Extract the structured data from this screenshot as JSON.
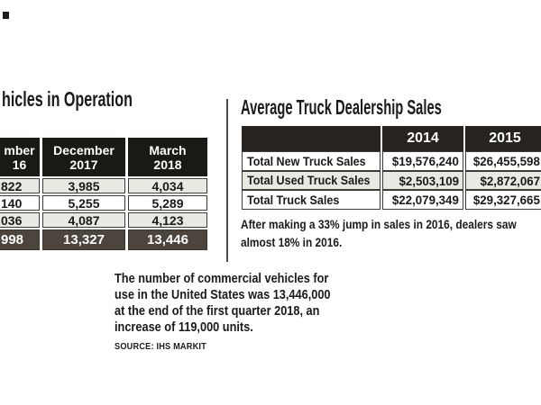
{
  "vio": {
    "title_fragment": "hicles in Operation",
    "header": {
      "col1_line1": "mber",
      "col1_line2": "16",
      "col2_line1": "December",
      "col2_line2": "2017",
      "col3_line1": "March",
      "col3_line2": "2018"
    },
    "rows": [
      {
        "c1": "822",
        "c2": "3,985",
        "c3": "4,034"
      },
      {
        "c1": "140",
        "c2": "5,255",
        "c3": "5,289"
      },
      {
        "c1": "036",
        "c2": "4,087",
        "c3": "4,123"
      },
      {
        "c1": "998",
        "c2": "13,327",
        "c3": "13,446"
      }
    ]
  },
  "sales": {
    "title": "Average Truck Dealership Sales",
    "header": {
      "col1": "",
      "col2": "2014",
      "col3": "2015"
    },
    "rows": [
      {
        "label": "Total New Truck Sales",
        "y2014": "$19,576,240",
        "y2015": "$26,455,598"
      },
      {
        "label": "Total Used Truck Sales",
        "y2014": "$2,503,109",
        "y2015": "$2,872,067"
      },
      {
        "label": "Total Truck Sales",
        "y2014": "$22,079,349",
        "y2015": "$29,327,665"
      }
    ],
    "note_line1": "After making a 33% jump in sales in 2016, dealers saw",
    "note_line2": "almost 18% in 2016."
  },
  "footer": {
    "para_line1": "The number of commercial vehicles for",
    "para_line2": "use in the United States was 13,446,000",
    "para_line3": "at the end of the first quarter 2018, an",
    "para_line4": "increase of 119,000 units.",
    "source": "SOURCE: IHS MARKIT"
  },
  "colors": {
    "table_header_black": "#1b1916",
    "sales_header_black": "#262320",
    "row_shade_gray": "#e9e8e3",
    "total_row_gray": "#4b453e",
    "border_gray": "#3e3c39",
    "text_black": "#1a1a1a"
  },
  "chart_data": [
    {
      "type": "table",
      "title": "hicles in Operation",
      "columns": [
        "mber 16 (December 2016, cropped)",
        "December 2017",
        "March 2018"
      ],
      "rows": [
        [
          "822",
          "3,985",
          "4,034"
        ],
        [
          "140",
          "5,255",
          "5,289"
        ],
        [
          "036",
          "4,087",
          "4,123"
        ],
        [
          "998",
          "13,327",
          "13,446"
        ]
      ],
      "note": "row labels cropped off left edge of image; last row is dark total row"
    },
    {
      "type": "table",
      "title": "Average Truck Dealership Sales",
      "columns": [
        "",
        "2014",
        "2015"
      ],
      "rows": [
        [
          "Total New Truck Sales",
          "$19,576,240",
          "$26,455,598"
        ],
        [
          "Total Used Truck Sales",
          "$2,503,109",
          "$2,872,067"
        ],
        [
          "Total Truck Sales",
          "$22,079,349",
          "$29,327,665"
        ]
      ],
      "annotations": [
        "After making a 33% jump in sales in 2016, dealers saw almost 18% in 2016."
      ]
    }
  ]
}
